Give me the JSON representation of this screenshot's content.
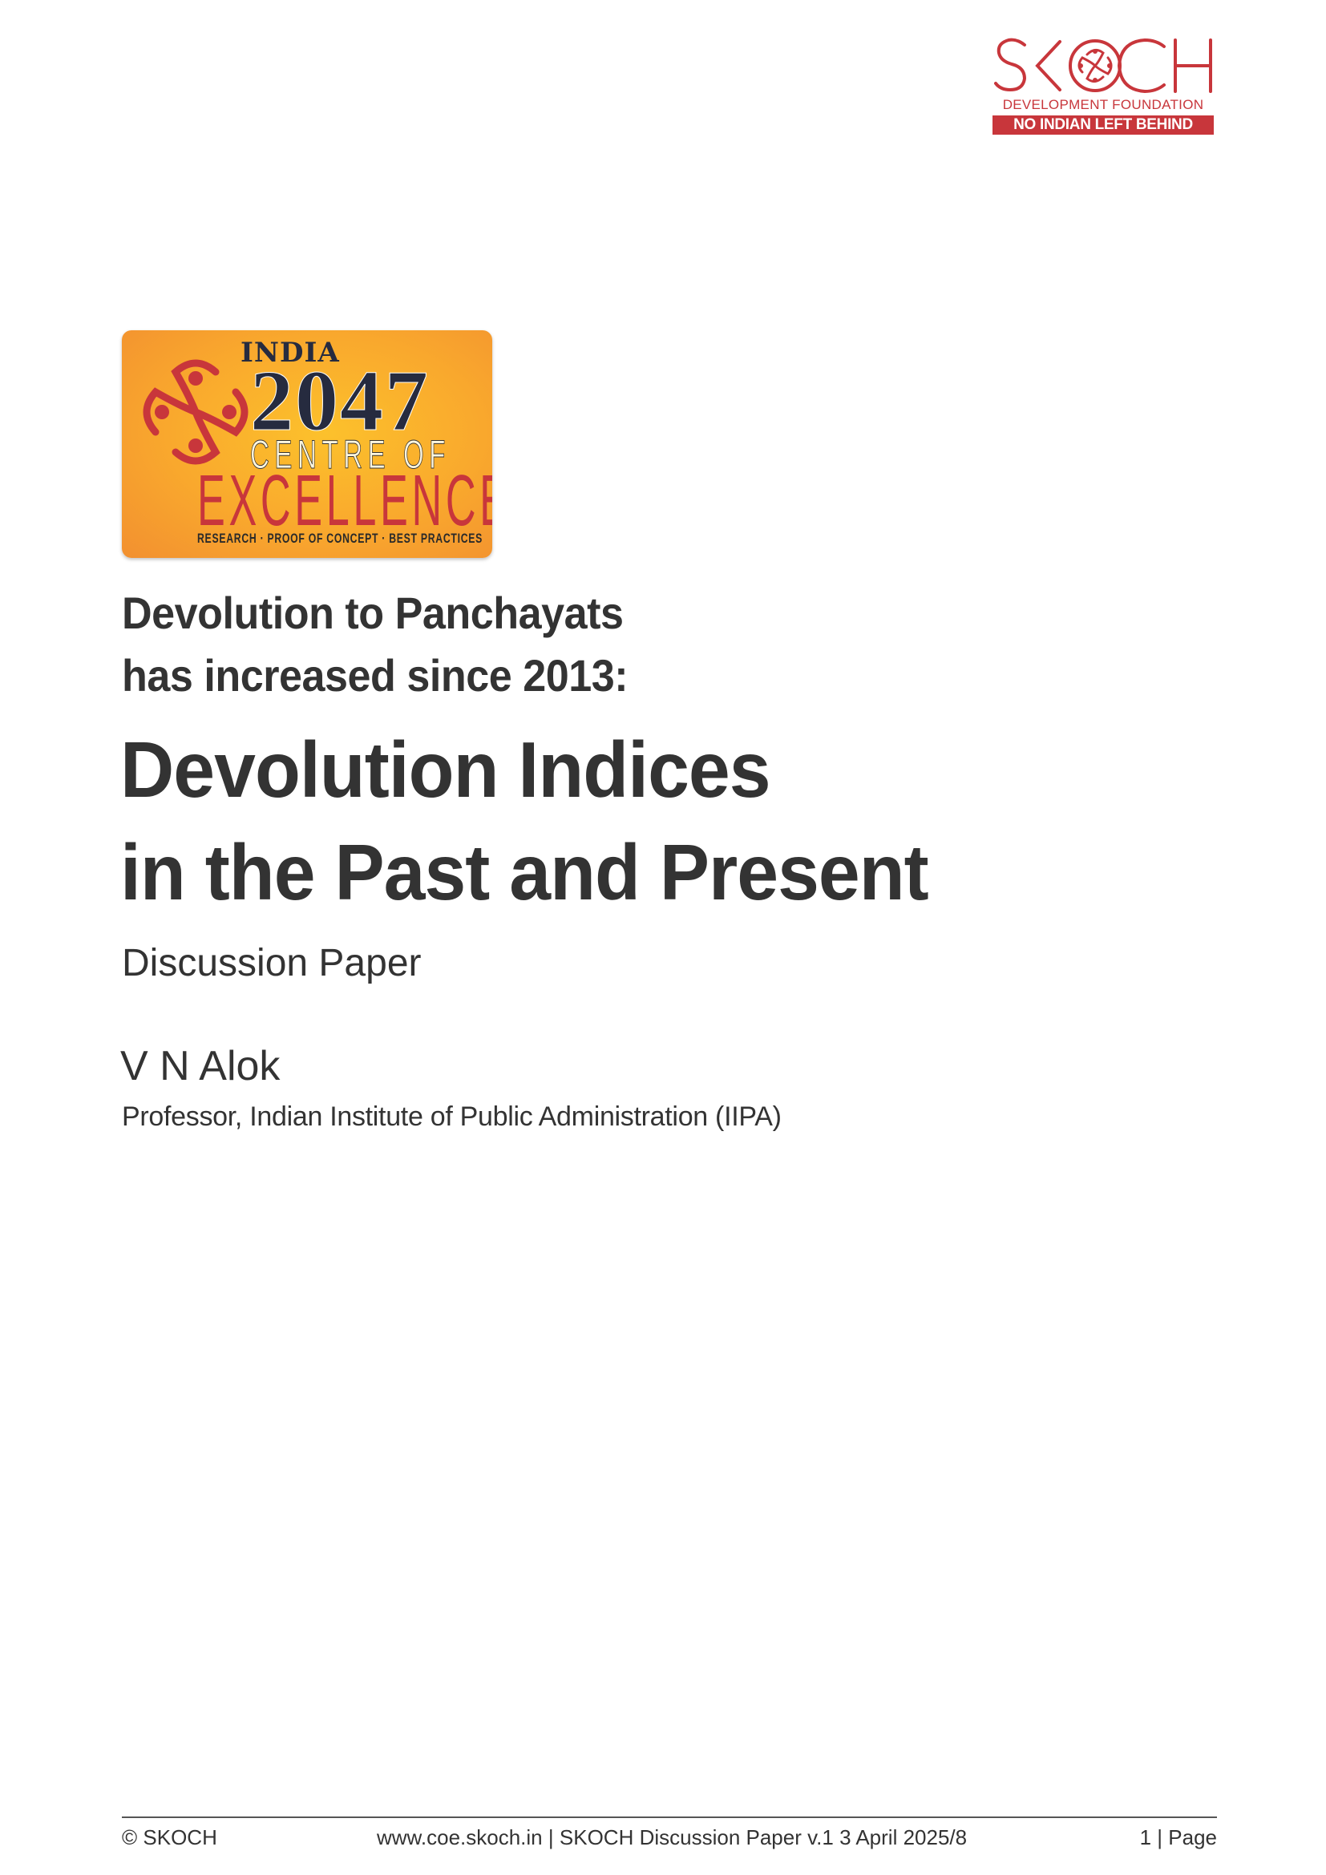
{
  "header": {
    "logo": {
      "wordmark": "SKOCH",
      "subtitle": "DEVELOPMENT FOUNDATION",
      "tagline": "NO INDIAN LEFT BEHIND",
      "color": "#c8363b"
    }
  },
  "badge": {
    "line1": "INDIA",
    "year": "2047",
    "line2": "CENTRE OF",
    "line3": "EXCELLENCE",
    "tagline": "RESEARCH · PROOF OF CONCEPT · BEST PRACTICES",
    "colors": {
      "background": "#f9a82d",
      "accent": "#c8363b",
      "navy": "#262b3f"
    }
  },
  "document": {
    "subtitle_lines": [
      "Devolution to Panchayats",
      "has increased since 2013:"
    ],
    "title_lines": [
      "Devolution Indices",
      "in the Past and Present"
    ],
    "doc_type": "Discussion Paper",
    "author": "V N Alok",
    "affiliation": "Professor, Indian Institute of Public Administration (IIPA)"
  },
  "footer": {
    "copyright": "© SKOCH",
    "website": "www.coe.skoch.in",
    "separator": "|",
    "paper_info": "SKOCH Discussion Paper v.1 3 April 2025/8",
    "page_number": "1",
    "page_label": "Page"
  }
}
